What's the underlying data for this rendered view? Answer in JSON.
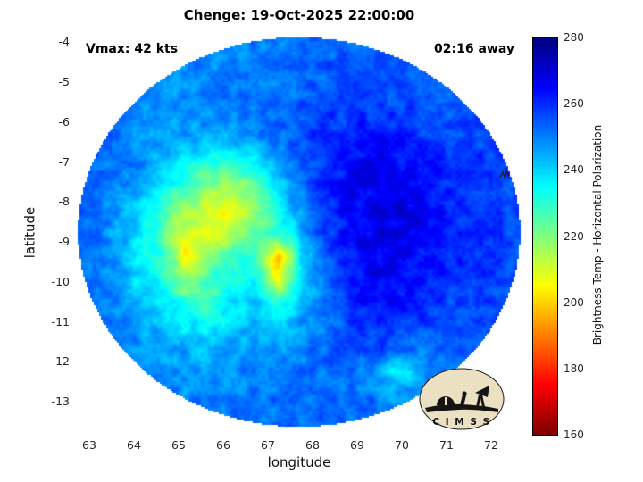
{
  "logo": {
    "text": "C I M S S"
  },
  "chart_data": {
    "type": "heatmap",
    "title": "Chenge: 19-Oct-2025 22:00:00",
    "xlabel": "longitude",
    "ylabel": "latitude",
    "xlim": [
      62.7,
      72.7
    ],
    "ylim": [
      -13.82,
      -3.84
    ],
    "xticks": [
      63,
      64,
      65,
      66,
      67,
      68,
      69,
      70,
      71,
      72
    ],
    "yticks": [
      -4,
      -5,
      -6,
      -7,
      -8,
      -9,
      -10,
      -11,
      -12,
      -13
    ],
    "grid_on": true,
    "annotations": [
      {
        "text": "Vmax: 42 kts",
        "position": "top-left"
      },
      {
        "text": "02:16 away",
        "position": "top-right"
      }
    ],
    "colorbar": {
      "label": "Brightness Temp - Horizontal Polarization",
      "min": 160,
      "max": 280,
      "ticks": [
        160,
        180,
        200,
        220,
        240,
        260,
        280
      ],
      "colormap": "jet-reversed"
    },
    "swath": {
      "center_lon": 67.7,
      "center_lat": -8.75,
      "rx_deg": 4.95,
      "ry_deg": 4.87
    },
    "grid": {
      "units": "K",
      "lon_start": 62.5,
      "lon_step": 0.526315,
      "lat_start": -3.6,
      "lat_step": -0.57647,
      "values": [
        [
          251,
          250,
          249,
          248,
          248,
          249,
          250,
          250,
          249,
          250,
          251,
          252,
          252,
          252,
          251,
          251,
          252,
          252,
          252,
          252
        ],
        [
          252,
          251,
          249,
          248,
          247,
          248,
          249,
          250,
          249,
          250,
          252,
          253,
          254,
          254,
          253,
          252,
          253,
          253,
          254,
          254
        ],
        [
          253,
          251,
          249,
          247,
          246,
          247,
          249,
          250,
          250,
          251,
          253,
          255,
          256,
          255,
          254,
          253,
          254,
          254,
          255,
          255
        ],
        [
          254,
          252,
          250,
          248,
          247,
          248,
          250,
          251,
          251,
          252,
          254,
          256,
          257,
          257,
          256,
          255,
          255,
          255,
          256,
          256
        ],
        [
          255,
          253,
          251,
          249,
          248,
          248,
          249,
          250,
          251,
          253,
          256,
          258,
          259,
          259,
          258,
          257,
          256,
          256,
          256,
          256
        ],
        [
          255,
          253,
          251,
          249,
          247,
          245,
          243,
          243,
          246,
          252,
          257,
          260,
          262,
          263,
          262,
          260,
          258,
          257,
          257,
          257
        ],
        [
          255,
          253,
          251,
          248,
          243,
          237,
          231,
          228,
          234,
          245,
          254,
          260,
          264,
          266,
          265,
          263,
          260,
          258,
          257,
          257
        ],
        [
          255,
          253,
          250,
          245,
          237,
          226,
          218,
          215,
          224,
          240,
          252,
          260,
          265,
          267,
          267,
          265,
          262,
          259,
          258,
          257
        ],
        [
          255,
          253,
          248,
          241,
          231,
          218,
          210,
          208,
          216,
          232,
          248,
          259,
          265,
          268,
          268,
          266,
          263,
          260,
          258,
          257
        ],
        [
          255,
          252,
          247,
          238,
          226,
          210,
          206,
          212,
          224,
          228,
          244,
          257,
          264,
          268,
          268,
          266,
          263,
          260,
          258,
          257
        ],
        [
          255,
          252,
          247,
          237,
          228,
          206,
          218,
          228,
          232,
          196,
          238,
          254,
          263,
          267,
          267,
          265,
          262,
          259,
          258,
          257
        ],
        [
          255,
          252,
          248,
          240,
          233,
          218,
          226,
          235,
          238,
          205,
          236,
          252,
          261,
          265,
          265,
          263,
          261,
          259,
          257,
          257
        ],
        [
          255,
          253,
          249,
          244,
          238,
          230,
          226,
          236,
          242,
          232,
          242,
          252,
          259,
          263,
          263,
          261,
          259,
          258,
          257,
          256
        ],
        [
          255,
          253,
          250,
          247,
          243,
          238,
          236,
          240,
          245,
          242,
          246,
          252,
          257,
          260,
          260,
          258,
          257,
          256,
          256,
          256
        ],
        [
          255,
          253,
          251,
          249,
          247,
          244,
          243,
          245,
          248,
          248,
          250,
          252,
          254,
          256,
          253,
          250,
          252,
          254,
          255,
          255
        ],
        [
          254,
          253,
          252,
          250,
          249,
          247,
          246,
          248,
          250,
          251,
          252,
          252,
          252,
          248,
          238,
          243,
          250,
          253,
          254,
          254
        ],
        [
          254,
          253,
          252,
          251,
          250,
          249,
          249,
          250,
          251,
          252,
          253,
          253,
          253,
          251,
          248,
          250,
          252,
          253,
          254,
          254
        ],
        [
          253,
          253,
          252,
          252,
          251,
          251,
          251,
          251,
          252,
          252,
          253,
          253,
          253,
          252,
          251,
          252,
          253,
          253,
          253,
          253
        ]
      ]
    }
  }
}
